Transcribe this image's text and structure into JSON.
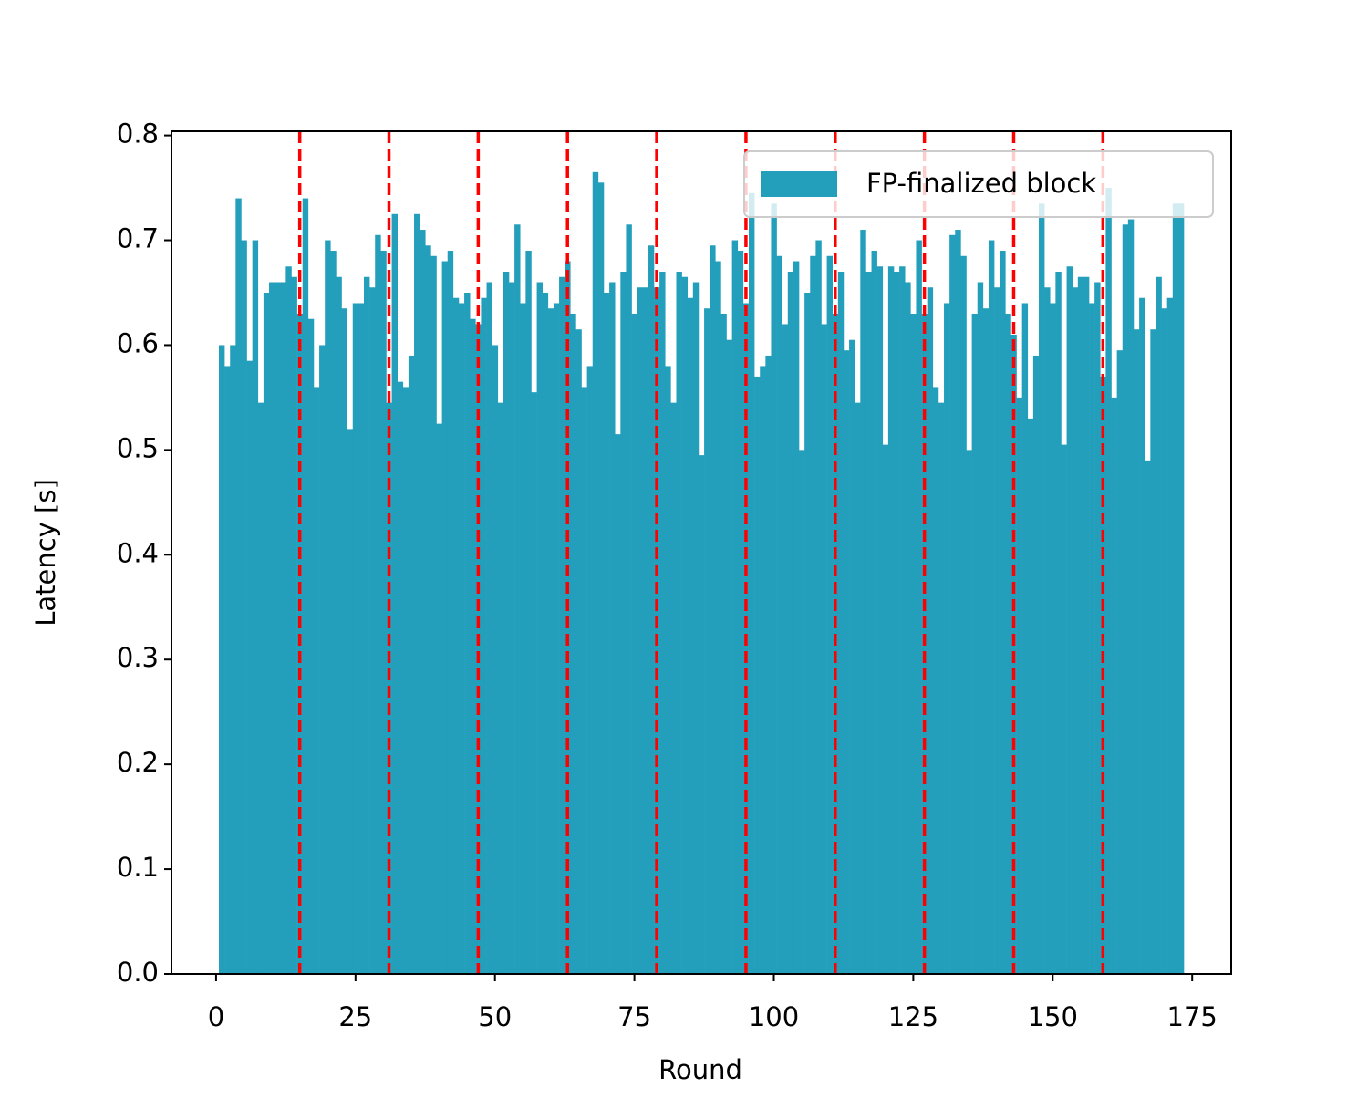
{
  "chart_data": {
    "type": "bar",
    "xlabel": "Round",
    "ylabel": "Latency [s]",
    "x": [
      1,
      2,
      3,
      4,
      5,
      6,
      7,
      8,
      9,
      10,
      11,
      12,
      13,
      14,
      15,
      16,
      17,
      18,
      19,
      20,
      21,
      22,
      23,
      24,
      25,
      26,
      27,
      28,
      29,
      30,
      31,
      32,
      33,
      34,
      35,
      36,
      37,
      38,
      39,
      40,
      41,
      42,
      43,
      44,
      45,
      46,
      47,
      48,
      49,
      50,
      51,
      52,
      53,
      54,
      55,
      56,
      57,
      58,
      59,
      60,
      61,
      62,
      63,
      64,
      65,
      66,
      67,
      68,
      69,
      70,
      71,
      72,
      73,
      74,
      75,
      76,
      77,
      78,
      79,
      80,
      81,
      82,
      83,
      84,
      85,
      86,
      87,
      88,
      89,
      90,
      91,
      92,
      93,
      94,
      95,
      96,
      97,
      98,
      99,
      100,
      101,
      102,
      103,
      104,
      105,
      106,
      107,
      108,
      109,
      110,
      111,
      112,
      113,
      114,
      115,
      116,
      117,
      118,
      119,
      120,
      121,
      122,
      123,
      124,
      125,
      126,
      127,
      128,
      129,
      130,
      131,
      132,
      133,
      134,
      135,
      136,
      137,
      138,
      139,
      140,
      141,
      142,
      143,
      144,
      145,
      146,
      147,
      148,
      149,
      150,
      151,
      152,
      153,
      154,
      155,
      156,
      157,
      158,
      159,
      160,
      161,
      162,
      163,
      164,
      165,
      166,
      167,
      168,
      169,
      170,
      171,
      172,
      173
    ],
    "series": [
      {
        "name": "FP-finalized block",
        "color": "#239fbc",
        "values": [
          0.6,
          0.58,
          0.6,
          0.74,
          0.7,
          0.585,
          0.7,
          0.545,
          0.65,
          0.66,
          0.66,
          0.66,
          0.675,
          0.665,
          0.63,
          0.74,
          0.625,
          0.56,
          0.6,
          0.7,
          0.69,
          0.665,
          0.635,
          0.52,
          0.64,
          0.64,
          0.665,
          0.655,
          0.705,
          0.69,
          0.545,
          0.725,
          0.565,
          0.56,
          0.59,
          0.725,
          0.71,
          0.695,
          0.685,
          0.525,
          0.68,
          0.69,
          0.645,
          0.64,
          0.65,
          0.625,
          0.62,
          0.645,
          0.66,
          0.6,
          0.545,
          0.67,
          0.66,
          0.715,
          0.64,
          0.69,
          0.555,
          0.66,
          0.65,
          0.635,
          0.64,
          0.665,
          0.68,
          0.63,
          0.615,
          0.56,
          0.58,
          0.765,
          0.755,
          0.65,
          0.66,
          0.515,
          0.67,
          0.715,
          0.63,
          0.655,
          0.655,
          0.695,
          0.655,
          0.67,
          0.58,
          0.545,
          0.67,
          0.665,
          0.645,
          0.66,
          0.495,
          0.635,
          0.695,
          0.68,
          0.63,
          0.605,
          0.7,
          0.69,
          0.64,
          0.745,
          0.57,
          0.58,
          0.59,
          0.735,
          0.685,
          0.62,
          0.67,
          0.68,
          0.5,
          0.65,
          0.685,
          0.7,
          0.62,
          0.685,
          0.63,
          0.67,
          0.595,
          0.605,
          0.545,
          0.71,
          0.67,
          0.69,
          0.675,
          0.505,
          0.675,
          0.67,
          0.675,
          0.66,
          0.63,
          0.7,
          0.63,
          0.655,
          0.56,
          0.545,
          0.64,
          0.705,
          0.71,
          0.685,
          0.5,
          0.63,
          0.66,
          0.635,
          0.7,
          0.655,
          0.69,
          0.63,
          0.61,
          0.55,
          0.64,
          0.53,
          0.59,
          0.735,
          0.655,
          0.64,
          0.67,
          0.505,
          0.675,
          0.655,
          0.665,
          0.665,
          0.64,
          0.66,
          0.57,
          0.75,
          0.55,
          0.595,
          0.715,
          0.72,
          0.615,
          0.645,
          0.49,
          0.615,
          0.665,
          0.635,
          0.645,
          0.735,
          0.735
        ]
      }
    ],
    "vlines": {
      "x": [
        15,
        31,
        47,
        63,
        79,
        95,
        111,
        127,
        143,
        159
      ],
      "color": "red"
    },
    "xlim": [
      -8,
      182
    ],
    "xticks": [
      0,
      25,
      50,
      75,
      100,
      125,
      150,
      175
    ],
    "ylim": [
      0,
      0.804
    ],
    "yticks": [
      {
        "value": 0,
        "label": "0.0"
      },
      0.1,
      0.2,
      0.3,
      0.4,
      0.5,
      0.6,
      0.7,
      0.8
    ],
    "legend": "upper right"
  }
}
